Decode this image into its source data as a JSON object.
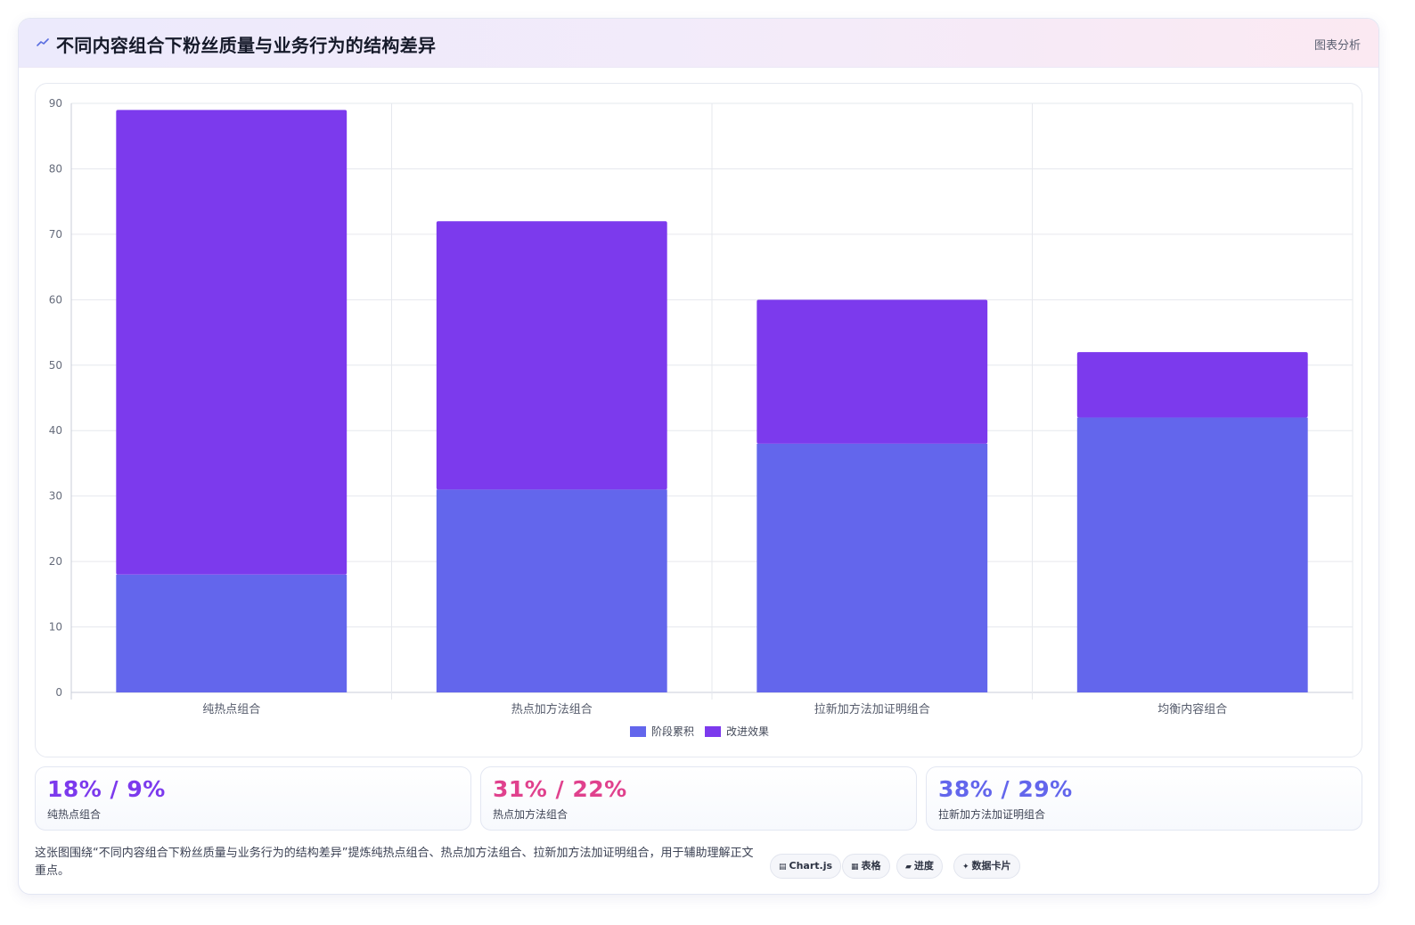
{
  "header": {
    "icon": "chart-line-icon",
    "title": "不同内容组合下粉丝质量与业务行为的结构差异",
    "tag": "图表分析"
  },
  "colors": {
    "series_a": "#6366ec",
    "series_b": "#7c3aed",
    "stat_1": "#7c3aed",
    "stat_2": "#e0418d",
    "stat_3": "#6366ec"
  },
  "chart_data": {
    "type": "bar",
    "stacked": true,
    "categories": [
      "纯热点组合",
      "热点加方法组合",
      "拉新加方法加证明组合",
      "均衡内容组合"
    ],
    "series": [
      {
        "name": "阶段累积",
        "values": [
          18,
          31,
          38,
          42
        ]
      },
      {
        "name": "改进效果",
        "values": [
          71,
          41,
          22,
          10
        ]
      }
    ],
    "ylim": [
      0,
      90
    ],
    "yticks": [
      0,
      10,
      20,
      30,
      40,
      50,
      60,
      70,
      80,
      90
    ],
    "grid": true,
    "legend_position": "bottom"
  },
  "stats": [
    {
      "value": "18% / 9%",
      "label": "纯热点组合"
    },
    {
      "value": "31% / 22%",
      "label": "热点加方法组合"
    },
    {
      "value": "38% / 29%",
      "label": "拉新加方法加证明组合"
    }
  ],
  "description": "这张图围绕“不同内容组合下粉丝质量与业务行为的结构差异”提炼纯热点组合、热点加方法组合、拉新加方法加证明组合，用于辅助理解正文重点。",
  "pills": [
    {
      "icon": "chart-icon",
      "label": "Chart.js"
    },
    {
      "icon": "table-icon",
      "label": "表格"
    },
    {
      "icon": "progress-icon",
      "label": "进度"
    },
    {
      "icon": "card-icon",
      "label": "数据卡片"
    }
  ]
}
